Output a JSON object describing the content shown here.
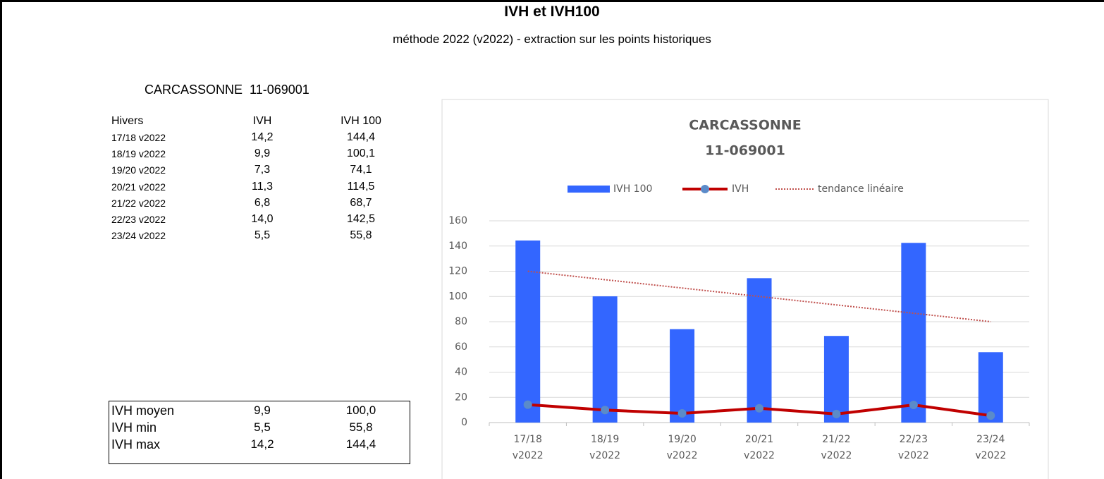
{
  "header": {
    "title": "IVH et IVH100",
    "subtitle": "méthode 2022 (v2022) - extraction sur les points historiques"
  },
  "station": "CARCASSONNE  11-069001",
  "table": {
    "columns": [
      "Hivers",
      "IVH",
      "IVH 100"
    ],
    "rows": [
      [
        "17/18 v2022",
        "14,2",
        "144,4"
      ],
      [
        "18/19 v2022",
        "9,9",
        "100,1"
      ],
      [
        "19/20 v2022",
        "7,3",
        "74,1"
      ],
      [
        "20/21 v2022",
        "11,3",
        "114,5"
      ],
      [
        "21/22 v2022",
        "6,8",
        "68,7"
      ],
      [
        "22/23 v2022",
        "14,0",
        "142,5"
      ],
      [
        "23/24 v2022",
        "5,5",
        "55,8"
      ]
    ]
  },
  "summary": {
    "rows": [
      [
        "IVH moyen",
        "9,9",
        "100,0"
      ],
      [
        "IVH min",
        "5,5",
        "55,8"
      ],
      [
        "IVH max",
        "14,2",
        "144,4"
      ]
    ]
  },
  "chart_data": {
    "type": "bar",
    "title": "CARCASSONNE",
    "subtitle": "11-069001",
    "categories": [
      "17/18 v2022",
      "18/19 v2022",
      "19/20 v2022",
      "20/21 v2022",
      "21/22 v2022",
      "22/23 v2022",
      "23/24 v2022"
    ],
    "series": [
      {
        "name": "IVH 100",
        "color": "#3366ff",
        "type": "bar",
        "values": [
          144.4,
          100.1,
          74.1,
          114.5,
          68.7,
          142.5,
          55.8
        ]
      },
      {
        "name": "IVH",
        "color": "#c00000",
        "marker_color": "#5b8bc9",
        "type": "line",
        "values": [
          14.2,
          9.9,
          7.3,
          11.3,
          6.8,
          14.0,
          5.5
        ]
      },
      {
        "name": "tendance linéaire",
        "color": "#c0504d",
        "type": "dotted",
        "values": [
          120.0,
          113.3,
          106.7,
          100.0,
          93.3,
          86.7,
          80.0
        ]
      }
    ],
    "ylim": [
      0,
      160
    ],
    "yticks": [
      0,
      20,
      40,
      60,
      80,
      100,
      120,
      140,
      160
    ],
    "grid": true,
    "legend": "top"
  }
}
